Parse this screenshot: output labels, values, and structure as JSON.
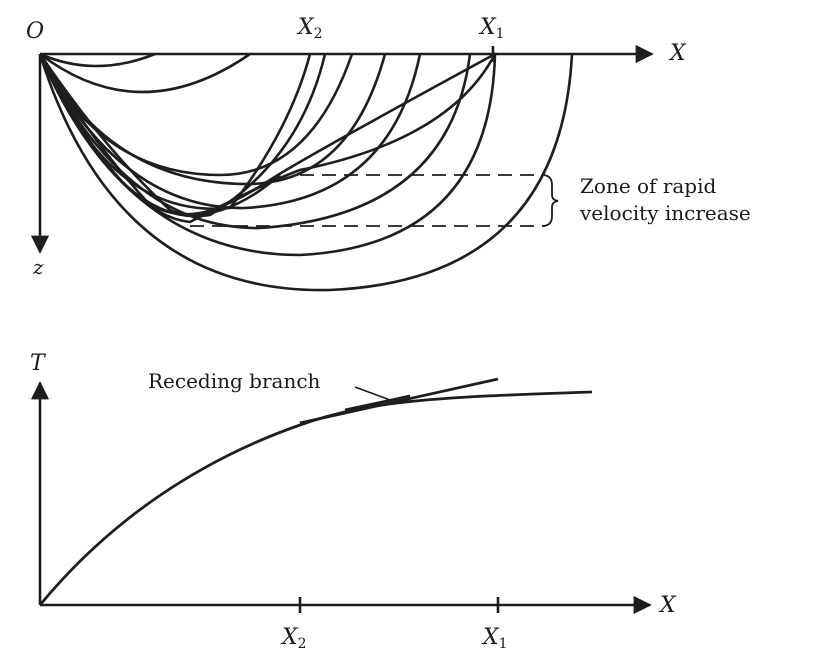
{
  "upper": {
    "origin": "O",
    "x_axis": "X",
    "z_axis": "z",
    "x2": "X",
    "x2_sub": "2",
    "x1": "X",
    "x1_sub": "1",
    "zone_line1": "Zone of rapid",
    "zone_line2": "velocity increase"
  },
  "lower": {
    "t_axis": "T",
    "x_axis": "X",
    "x2": "X",
    "x2_sub": "2",
    "x1": "X",
    "x1_sub": "1",
    "receding": "Receding branch"
  }
}
